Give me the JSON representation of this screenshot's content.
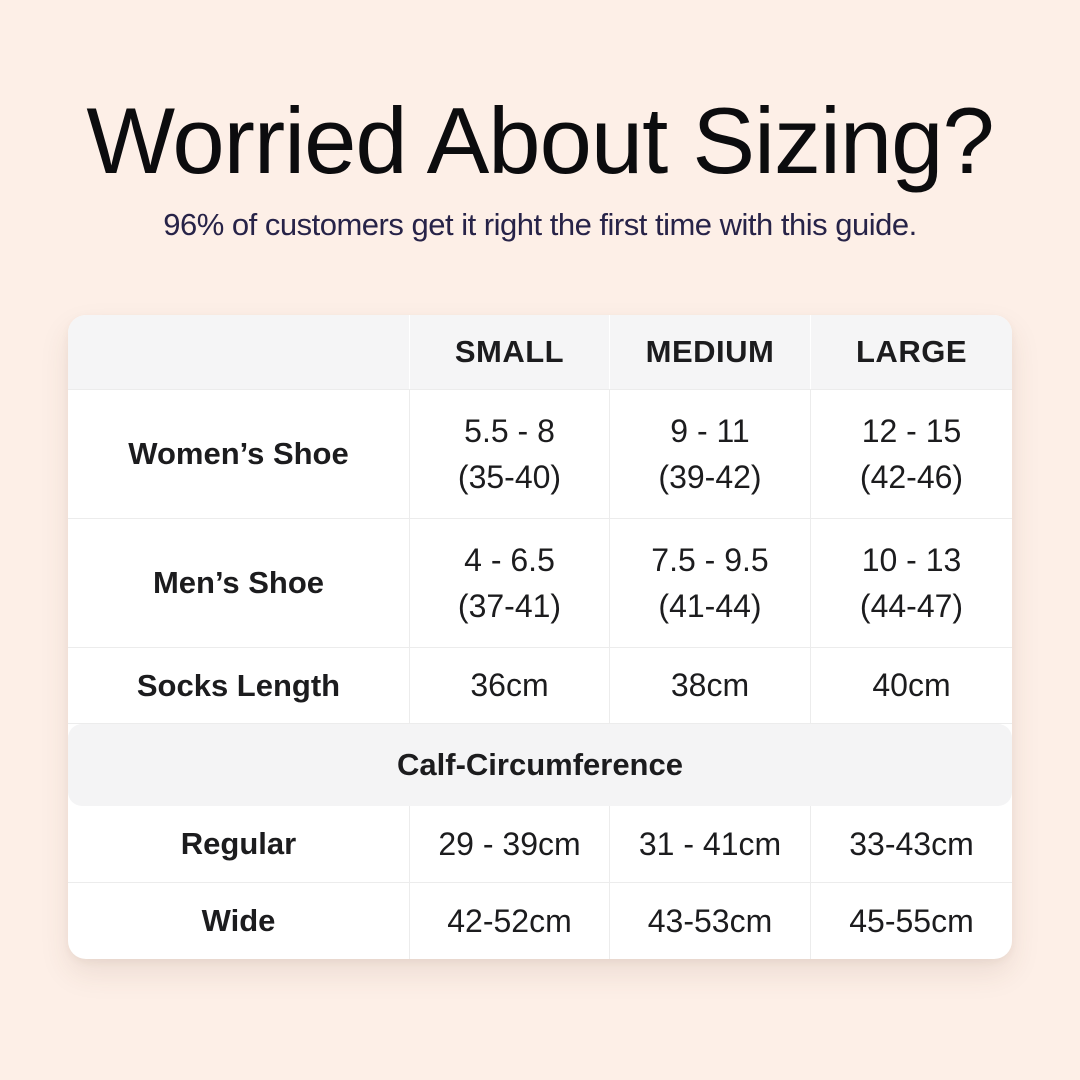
{
  "page": {
    "title": "Worried About Sizing?",
    "subtitle": "96% of customers get it right the first time with this guide."
  },
  "colors": {
    "background": "#fdefe7",
    "card_background": "#ffffff",
    "table_header_background": "#f5f5f6",
    "section_band_background": "#f4f4f5",
    "divider": "#ececec",
    "title_text": "#0c0c0e",
    "subtitle_text": "#272348",
    "table_text": "#1c1c1e"
  },
  "chart_data": {
    "type": "table",
    "title": "Worried About Sizing?",
    "subtitle": "96% of customers get it right the first time with this guide.",
    "columns": [
      "SMALL",
      "MEDIUM",
      "LARGE"
    ],
    "rows": [
      {
        "label": "Women’s Shoe",
        "small": "5.5 - 8\n(35-40)",
        "medium": "9 - 11\n(39-42)",
        "large": "12 - 15\n(42-46)"
      },
      {
        "label": "Men’s Shoe",
        "small": "4 - 6.5\n(37-41)",
        "medium": "7.5 - 9.5\n(41-44)",
        "large": "10 - 13\n(44-47)"
      },
      {
        "label": "Socks Length",
        "small": "36cm",
        "medium": "38cm",
        "large": "40cm"
      }
    ],
    "section_header": "Calf-Circumference",
    "section_rows": [
      {
        "label": "Regular",
        "small": "29 - 39cm",
        "medium": "31 - 41cm",
        "large": "33-43cm"
      },
      {
        "label": "Wide",
        "small": "42-52cm",
        "medium": "43-53cm",
        "large": "45-55cm"
      }
    ]
  }
}
